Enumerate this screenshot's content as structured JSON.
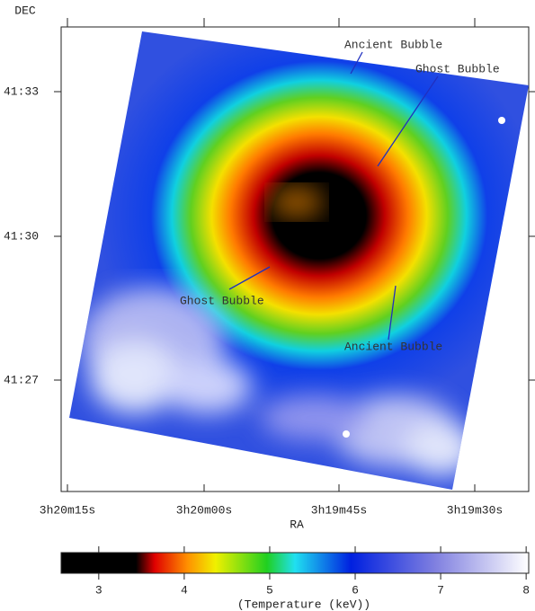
{
  "figure": {
    "y_label": "DEC",
    "x_label": "RA",
    "x_ticks": [
      "3h20m15s",
      "3h20m00s",
      "3h19m45s",
      "3h19m30s"
    ],
    "y_ticks": [
      "41:33",
      "41:30",
      "41:27"
    ],
    "annotations": [
      "Ancient Bubble",
      "Ghost Bubble",
      "Ghost Bubble",
      "Ancient Bubble"
    ],
    "colorbar": {
      "label": "(Temperature (keV))",
      "lim": [
        2.56,
        8.03
      ],
      "ticks": [
        3,
        4,
        5,
        6,
        7,
        8
      ]
    }
  }
}
